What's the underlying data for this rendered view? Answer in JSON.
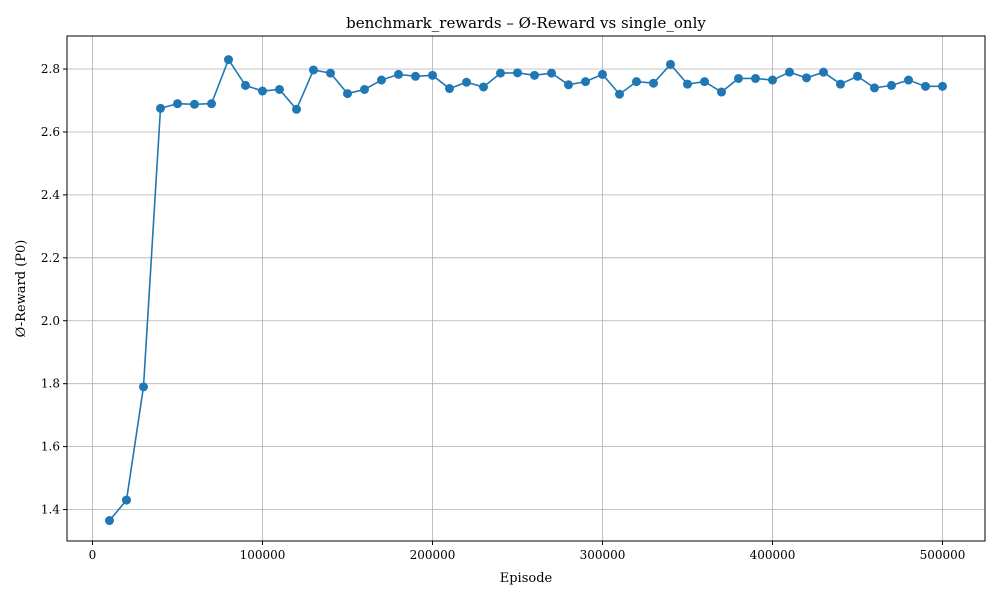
{
  "chart_data": {
    "type": "line",
    "title": "benchmark_rewards – Ø-Reward vs single_only",
    "xlabel": "Episode",
    "ylabel": "Ø-Reward (P0)",
    "xlim": [
      -15000,
      525000
    ],
    "ylim": [
      1.3,
      2.905
    ],
    "xticks": [
      0,
      100000,
      200000,
      300000,
      400000,
      500000
    ],
    "xtick_labels": [
      "0",
      "100000",
      "200000",
      "300000",
      "400000",
      "500000"
    ],
    "yticks": [
      1.4,
      1.6,
      1.8,
      2.0,
      2.2,
      2.4,
      2.6,
      2.8
    ],
    "ytick_labels": [
      "1.4",
      "1.6",
      "1.8",
      "2.0",
      "2.2",
      "2.4",
      "2.6",
      "2.8"
    ],
    "grid": true,
    "markers": true,
    "color": "#1f77b4",
    "series": [
      {
        "x": [
          10000,
          20000,
          30000,
          40000,
          50000,
          60000,
          70000,
          80000,
          90000,
          100000,
          110000,
          120000,
          130000,
          140000,
          150000,
          160000,
          170000,
          180000,
          190000,
          200000,
          210000,
          220000,
          230000,
          240000,
          250000,
          260000,
          270000,
          280000,
          290000,
          300000,
          310000,
          320000,
          330000,
          340000,
          350000,
          360000,
          370000,
          380000,
          390000,
          400000,
          410000,
          420000,
          430000,
          440000,
          450000,
          460000,
          470000,
          480000,
          490000,
          500000
        ],
        "y": [
          1.365,
          1.43,
          1.79,
          2.675,
          2.69,
          2.688,
          2.69,
          2.83,
          2.748,
          2.73,
          2.735,
          2.672,
          2.797,
          2.787,
          2.722,
          2.735,
          2.765,
          2.783,
          2.777,
          2.78,
          2.738,
          2.758,
          2.743,
          2.787,
          2.788,
          2.78,
          2.787,
          2.75,
          2.76,
          2.783,
          2.72,
          2.76,
          2.755,
          2.815,
          2.752,
          2.76,
          2.727,
          2.77,
          2.77,
          2.765,
          2.79,
          2.772,
          2.79,
          2.752,
          2.777,
          2.74,
          2.748,
          2.765,
          2.745,
          2.745
        ]
      }
    ]
  }
}
